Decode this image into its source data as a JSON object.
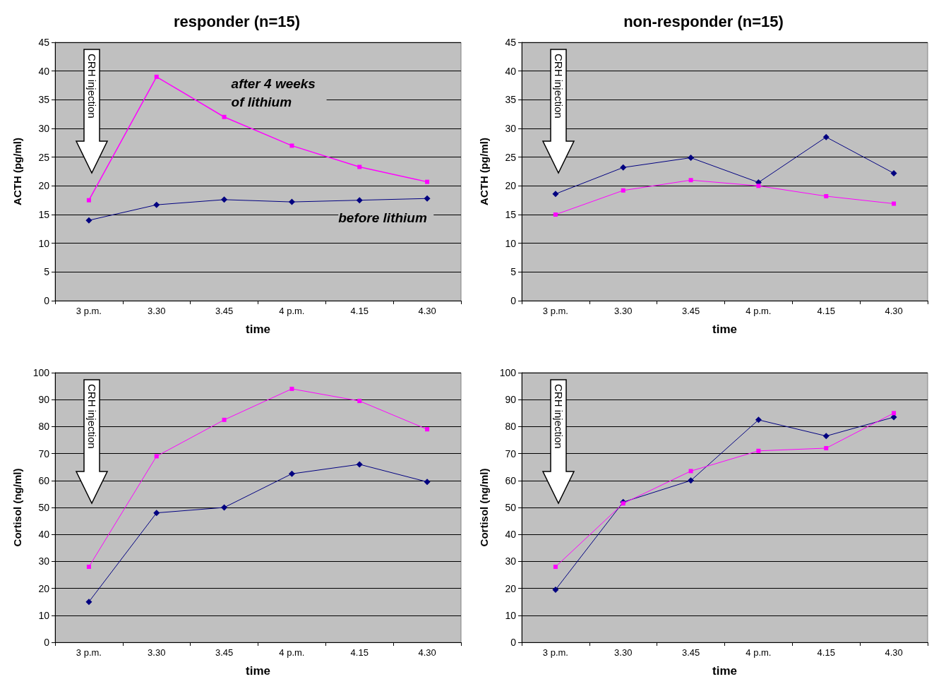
{
  "chart_data": [
    {
      "type": "line",
      "title": "responder (n=15)",
      "xlabel": "time",
      "ylabel": "ACTH (pg/ml)",
      "categories": [
        "3 p.m.",
        "3.30",
        "3.45",
        "4 p.m.",
        "4.15",
        "4.30"
      ],
      "ylim": [
        0,
        45
      ],
      "yticks": [
        0,
        5,
        10,
        15,
        20,
        25,
        30,
        35,
        40,
        45
      ],
      "grid": "y",
      "legend": false,
      "annotations": [
        "CRH injection"
      ],
      "series": [
        {
          "name": "after 4 weeks of lithium",
          "color": "#ff00ff",
          "marker": "square",
          "values": [
            17.5,
            39,
            32,
            27,
            23.3,
            20.7
          ]
        },
        {
          "name": "before lithium",
          "color": "#000080",
          "marker": "diamond",
          "values": [
            14,
            16.7,
            17.6,
            17.2,
            17.5,
            17.8
          ]
        }
      ]
    },
    {
      "type": "line",
      "title": "non-responder (n=15)",
      "xlabel": "time",
      "ylabel": "ACTH (pg/ml)",
      "categories": [
        "3 p.m.",
        "3.30",
        "3.45",
        "4 p.m.",
        "4.15",
        "4.30"
      ],
      "ylim": [
        0,
        45
      ],
      "yticks": [
        0,
        5,
        10,
        15,
        20,
        25,
        30,
        35,
        40,
        45
      ],
      "grid": "y",
      "legend": false,
      "annotations": [
        "CRH injection"
      ],
      "series": [
        {
          "color": "#000080",
          "marker": "diamond",
          "values": [
            18.6,
            23.2,
            24.9,
            20.6,
            28.5,
            22.2
          ]
        },
        {
          "color": "#ff00ff",
          "marker": "square",
          "values": [
            15,
            19.2,
            21,
            20,
            18.2,
            16.9
          ]
        }
      ]
    },
    {
      "type": "line",
      "xlabel": "time",
      "ylabel": "Cortisol (ng/ml)",
      "categories": [
        "3 p.m.",
        "3.30",
        "3.45",
        "4 p.m.",
        "4.15",
        "4.30"
      ],
      "ylim": [
        0,
        100
      ],
      "yticks": [
        0,
        10,
        20,
        30,
        40,
        50,
        60,
        70,
        80,
        90,
        100
      ],
      "grid": "y",
      "legend": false,
      "annotations": [
        "CRH injection"
      ],
      "series": [
        {
          "color": "#ff00ff",
          "marker": "square",
          "values": [
            28,
            69,
            82.5,
            94,
            89.5,
            79
          ]
        },
        {
          "color": "#000080",
          "marker": "diamond",
          "values": [
            15,
            48,
            50,
            62.5,
            66,
            59.5
          ]
        }
      ]
    },
    {
      "type": "line",
      "xlabel": "time",
      "ylabel": "Cortisol (ng/ml)",
      "categories": [
        "3 p.m.",
        "3.30",
        "3.45",
        "4 p.m.",
        "4.15",
        "4.30"
      ],
      "ylim": [
        0,
        100
      ],
      "yticks": [
        0,
        10,
        20,
        30,
        40,
        50,
        60,
        70,
        80,
        90,
        100
      ],
      "grid": "y",
      "legend": false,
      "annotations": [
        "CRH injection"
      ],
      "series": [
        {
          "color": "#000080",
          "marker": "diamond",
          "values": [
            19.5,
            52,
            60,
            82.5,
            76.5,
            83.5
          ]
        },
        {
          "color": "#ff00ff",
          "marker": "square",
          "values": [
            28,
            51.5,
            63.5,
            71,
            72,
            85
          ]
        }
      ]
    }
  ]
}
